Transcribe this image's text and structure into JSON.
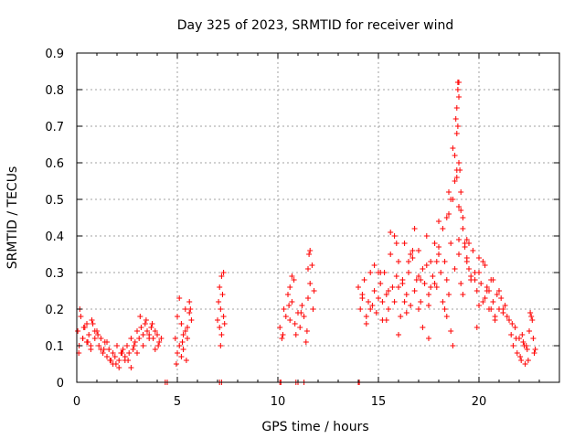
{
  "chart_data": {
    "type": "scatter",
    "title": "Day 325 of 2023, SRMTID for receiver wind",
    "xlabel": "GPS time / hours",
    "ylabel": "SRMTID / TECUs",
    "xlim": [
      0,
      24
    ],
    "ylim": [
      0,
      0.9
    ],
    "xticks": [
      0,
      5,
      10,
      15,
      20
    ],
    "xtick_labels": [
      "0",
      "5",
      "10",
      "15",
      "20"
    ],
    "yticks": [
      0,
      0.1,
      0.2,
      0.3,
      0.4,
      0.5,
      0.6,
      0.7,
      0.8,
      0.9
    ],
    "ytick_labels": [
      "0",
      "0.1",
      "0.2",
      "0.3",
      "0.4",
      "0.5",
      "0.6",
      "0.7",
      "0.8",
      "0.9"
    ],
    "grid": true,
    "marker": "+",
    "color": "#ff0000",
    "series": [
      {
        "name": "SRMTID",
        "x": [
          0.05,
          0.12,
          0.2,
          0.3,
          0.4,
          0.5,
          0.6,
          0.7,
          0.8,
          0.9,
          1.0,
          1.1,
          1.2,
          1.3,
          1.4,
          1.5,
          1.6,
          1.7,
          1.8,
          1.9,
          2.0,
          2.1,
          2.2,
          2.3,
          2.4,
          2.5,
          2.6,
          2.7,
          2.8,
          2.9,
          3.0,
          3.1,
          3.2,
          3.3,
          3.4,
          3.5,
          3.6,
          3.7,
          3.8,
          3.9,
          4.0,
          4.1,
          4.2,
          0.15,
          0.35,
          0.55,
          0.75,
          1.05,
          1.35,
          1.65,
          1.95,
          2.25,
          2.55,
          2.85,
          3.15,
          3.45,
          3.75,
          4.05,
          0.1,
          0.3,
          0.5,
          0.7,
          0.9,
          1.2,
          1.5,
          1.8,
          2.1,
          2.4,
          2.7,
          3.0,
          3.3,
          3.6,
          3.9,
          4.9,
          5.0,
          5.1,
          5.2,
          5.3,
          5.4,
          5.5,
          5.6,
          5.7,
          5.0,
          5.2,
          5.4,
          5.6,
          5.1,
          5.3,
          5.5,
          4.95,
          5.25,
          5.45,
          5.65,
          7.0,
          7.05,
          7.1,
          7.15,
          7.2,
          7.25,
          7.3,
          7.35,
          7.1,
          7.2,
          7.3,
          7.15,
          10.1,
          10.2,
          10.3,
          10.4,
          10.5,
          10.6,
          10.7,
          10.8,
          10.9,
          11.0,
          11.1,
          11.2,
          11.3,
          11.4,
          11.5,
          11.6,
          11.7,
          11.8,
          10.25,
          10.55,
          10.85,
          11.15,
          11.45,
          11.75,
          11.55,
          11.6,
          11.5,
          10.6,
          10.7,
          14.0,
          14.1,
          14.2,
          14.3,
          14.4,
          14.5,
          14.6,
          14.7,
          14.8,
          14.9,
          15.0,
          15.1,
          15.2,
          15.3,
          15.4,
          15.5,
          15.6,
          15.7,
          15.8,
          15.9,
          16.0,
          16.1,
          16.2,
          16.3,
          16.4,
          16.5,
          16.6,
          16.7,
          16.8,
          16.9,
          17.0,
          17.1,
          17.2,
          17.3,
          17.4,
          17.5,
          17.6,
          17.7,
          17.8,
          17.9,
          18.0,
          18.1,
          18.2,
          18.3,
          18.4,
          18.5,
          18.6,
          18.7,
          18.8,
          18.9,
          19.0,
          19.1,
          19.2,
          19.3,
          19.4,
          19.5,
          19.6,
          19.7,
          19.8,
          19.9,
          20.0,
          20.1,
          20.2,
          20.3,
          20.4,
          20.5,
          20.6,
          20.7,
          20.8,
          20.9,
          21.0,
          21.1,
          21.2,
          21.3,
          21.4,
          21.5,
          14.2,
          14.6,
          15.0,
          15.4,
          15.8,
          16.2,
          16.6,
          17.0,
          17.4,
          17.8,
          18.2,
          18.6,
          19.0,
          19.4,
          19.8,
          20.2,
          20.6,
          21.0,
          14.4,
          14.8,
          15.2,
          15.6,
          16.0,
          16.4,
          16.8,
          17.2,
          17.6,
          18.0,
          18.4,
          18.8,
          19.2,
          19.6,
          20.0,
          20.4,
          20.8,
          21.2,
          15.1,
          15.5,
          15.9,
          16.3,
          16.7,
          17.1,
          17.5,
          17.9,
          18.3,
          18.7,
          19.1,
          19.5,
          19.9,
          20.3,
          20.7,
          16.0,
          16.5,
          17.0,
          17.5,
          18.0,
          18.5,
          19.0,
          19.5,
          20.0,
          20.5,
          18.4,
          18.6,
          18.8,
          18.9,
          19.0,
          19.1,
          19.2,
          19.3,
          19.4,
          18.5,
          18.7,
          18.95,
          19.05,
          18.85,
          18.9,
          18.95,
          19.0,
          19.0,
          18.9,
          18.95,
          21.6,
          21.7,
          21.8,
          21.9,
          22.0,
          22.1,
          22.2,
          22.3,
          22.4,
          22.5,
          22.6,
          22.7,
          22.8,
          21.65,
          21.85,
          22.05,
          22.25,
          22.45,
          22.65,
          22.75,
          22.15,
          22.35,
          22.55,
          4.4,
          4.5,
          7.1,
          7.2,
          10.1,
          10.15,
          10.9,
          11.0,
          11.3,
          14.0,
          14.05
        ],
        "y": [
          0.14,
          0.1,
          0.18,
          0.12,
          0.15,
          0.11,
          0.13,
          0.09,
          0.16,
          0.12,
          0.14,
          0.1,
          0.12,
          0.08,
          0.11,
          0.07,
          0.09,
          0.06,
          0.08,
          0.07,
          0.1,
          0.06,
          0.08,
          0.09,
          0.07,
          0.1,
          0.08,
          0.12,
          0.09,
          0.11,
          0.14,
          0.12,
          0.15,
          0.13,
          0.16,
          0.14,
          0.13,
          0.15,
          0.12,
          0.14,
          0.13,
          0.11,
          0.12,
          0.2,
          0.15,
          0.11,
          0.17,
          0.13,
          0.09,
          0.06,
          0.05,
          0.08,
          0.06,
          0.1,
          0.18,
          0.17,
          0.16,
          0.1,
          0.08,
          0.12,
          0.16,
          0.1,
          0.14,
          0.09,
          0.11,
          0.05,
          0.04,
          0.06,
          0.04,
          0.08,
          0.1,
          0.12,
          0.09,
          0.12,
          0.18,
          0.1,
          0.16,
          0.13,
          0.2,
          0.15,
          0.22,
          0.17,
          0.08,
          0.07,
          0.14,
          0.19,
          0.23,
          0.09,
          0.12,
          0.05,
          0.11,
          0.06,
          0.2,
          0.17,
          0.22,
          0.15,
          0.2,
          0.13,
          0.24,
          0.18,
          0.16,
          0.26,
          0.29,
          0.3,
          0.1,
          0.15,
          0.12,
          0.2,
          0.18,
          0.24,
          0.17,
          0.22,
          0.28,
          0.13,
          0.19,
          0.15,
          0.21,
          0.18,
          0.11,
          0.23,
          0.27,
          0.32,
          0.25,
          0.13,
          0.21,
          0.16,
          0.19,
          0.14,
          0.2,
          0.35,
          0.36,
          0.31,
          0.26,
          0.29,
          0.26,
          0.2,
          0.24,
          0.28,
          0.18,
          0.22,
          0.3,
          0.21,
          0.25,
          0.19,
          0.23,
          0.27,
          0.17,
          0.3,
          0.24,
          0.2,
          0.35,
          0.26,
          0.22,
          0.29,
          0.33,
          0.18,
          0.27,
          0.38,
          0.24,
          0.3,
          0.21,
          0.34,
          0.25,
          0.28,
          0.36,
          0.22,
          0.31,
          0.27,
          0.4,
          0.24,
          0.33,
          0.29,
          0.38,
          0.26,
          0.35,
          0.3,
          0.42,
          0.33,
          0.28,
          0.46,
          0.38,
          0.5,
          0.55,
          0.58,
          0.6,
          0.52,
          0.45,
          0.38,
          0.34,
          0.31,
          0.28,
          0.36,
          0.3,
          0.25,
          0.3,
          0.27,
          0.22,
          0.32,
          0.25,
          0.2,
          0.28,
          0.22,
          0.18,
          0.24,
          0.2,
          0.23,
          0.19,
          0.21,
          0.18,
          0.17,
          0.23,
          0.2,
          0.3,
          0.17,
          0.4,
          0.28,
          0.35,
          0.2,
          0.32,
          0.27,
          0.22,
          0.14,
          0.35,
          0.39,
          0.28,
          0.33,
          0.2,
          0.25,
          0.16,
          0.32,
          0.22,
          0.41,
          0.13,
          0.19,
          0.42,
          0.15,
          0.26,
          0.44,
          0.18,
          0.31,
          0.24,
          0.29,
          0.21,
          0.26,
          0.17,
          0.2,
          0.3,
          0.25,
          0.38,
          0.22,
          0.36,
          0.28,
          0.12,
          0.33,
          0.2,
          0.1,
          0.27,
          0.38,
          0.15,
          0.23,
          0.28,
          0.26,
          0.33,
          0.29,
          0.21,
          0.37,
          0.24,
          0.39,
          0.31,
          0.34,
          0.25,
          0.45,
          0.5,
          0.62,
          0.56,
          0.48,
          0.47,
          0.42,
          0.37,
          0.33,
          0.52,
          0.64,
          0.8,
          0.58,
          0.72,
          0.75,
          0.82,
          0.78,
          0.82,
          0.68,
          0.7,
          0.13,
          0.1,
          0.15,
          0.08,
          0.12,
          0.06,
          0.11,
          0.05,
          0.09,
          0.14,
          0.18,
          0.12,
          0.09,
          0.16,
          0.12,
          0.07,
          0.1,
          0.06,
          0.17,
          0.08,
          0.13,
          0.1,
          0.19,
          0,
          0,
          0,
          0,
          0,
          0,
          0,
          0,
          0,
          0,
          0
        ]
      }
    ]
  }
}
